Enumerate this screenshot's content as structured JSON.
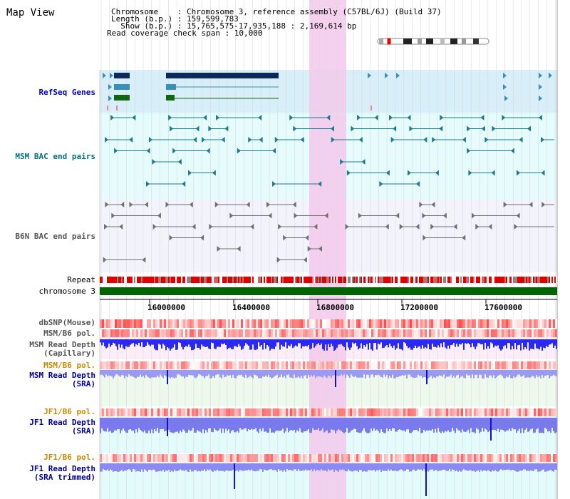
{
  "page": {
    "title": "Map View"
  },
  "header": {
    "chromosome_line": "Chromosome    : Chromosome 3, reference assembly (C57BL/6J) (Build 37)",
    "length_line": "Length (b.p.) : 159,599,783",
    "show_line": "  Show (b.p.) : 15,765,575-17,935,188 : 2,169,614 bp",
    "coverage_line": "Read coverage check span : 10,000"
  },
  "tracks": {
    "refseq": "RefSeq Genes",
    "msm_bac": "MSM BAC end pairs",
    "b6n_bac": "B6N BAC end pairs",
    "repeat": "Repeat",
    "chromosome": "chromosome 3",
    "dbsnp": "dbSNP(Mouse)",
    "msm_b6_pol1": "MSM/B6 pol.",
    "msm_read_depth_cap_1": "MSM Read Depth",
    "msm_read_depth_cap_2": "(Capillary)",
    "msm_b6_pol2": "MSM/B6 pol.",
    "msm_read_depth_sra_1": "MSM Read Depth",
    "msm_read_depth_sra_2": "(SRA)",
    "jf1_b6_pol1": "JF1/B6 pol.",
    "jf1_read_depth_sra_1": "JF1 Read Depth",
    "jf1_read_depth_sra_2": "(SRA)",
    "jf1_b6_pol2": "JF1/B6 pol.",
    "jf1_read_depth_trim_1": "JF1 Read Depth",
    "jf1_read_depth_trim_2": "(SRA trimmed)"
  },
  "axis": {
    "ticks": [
      "16000000",
      "16400000",
      "16800000",
      "17200000",
      "17600000"
    ]
  },
  "colors": {
    "refseq_label": "#0000cc",
    "msm_bac_label": "#007080",
    "b6n_bac_label": "#555555",
    "msm_pol2_label": "#cc8800",
    "sra_label": "#000099",
    "jf1_pol_label": "#cc8800",
    "highlight": "#f5c8ec",
    "chromosome_bar": "#006400",
    "depth_blue": "#2222ee"
  }
}
